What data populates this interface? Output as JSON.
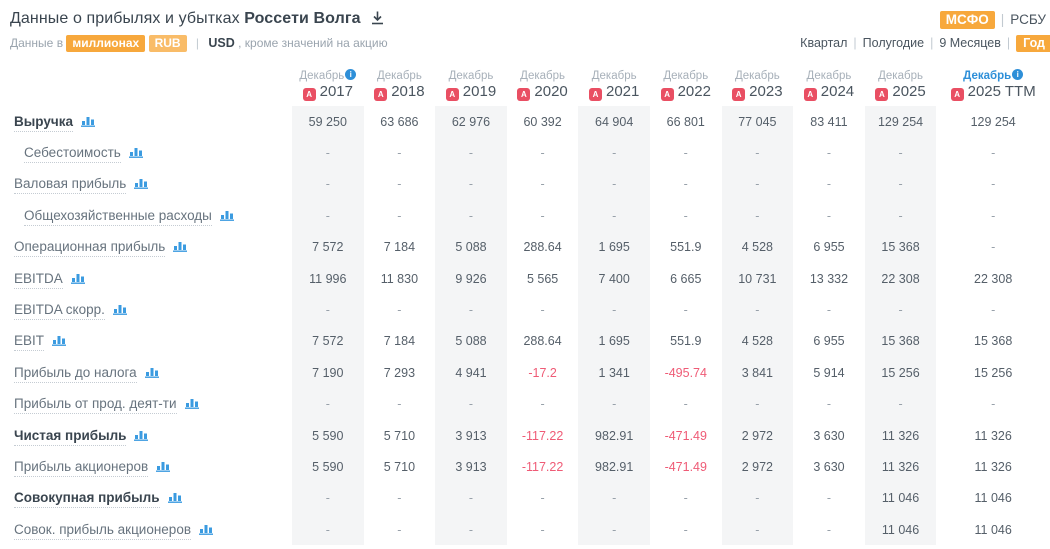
{
  "header": {
    "title_prefix": "Данные о прибылях и убытках",
    "company": "Россети Волга",
    "standards": [
      "МСФО",
      "РСБУ"
    ],
    "active_standard": "МСФО",
    "units_prefix": "Данные в",
    "unit_scale": "миллионах",
    "currency_rub": "RUB",
    "currency_usd": "USD",
    "units_suffix": ", кроме значений на акцию",
    "periods": [
      "Квартал",
      "Полугодие",
      "9 Месяцев",
      "Год"
    ],
    "active_period": "Год"
  },
  "colors": {
    "accent_orange": "#F7A83C",
    "accent_orange_light": "#F9BC68",
    "link_blue": "#2E8FD8",
    "negative_red": "#EF5B76",
    "pdf_red": "#E94F63",
    "column_stripe": "#F4F5F6"
  },
  "table": {
    "columns": [
      {
        "month": "Декабрь",
        "year": "2017",
        "info": true,
        "blue": false,
        "stripe": true
      },
      {
        "month": "Декабрь",
        "year": "2018",
        "info": false,
        "blue": false,
        "stripe": false
      },
      {
        "month": "Декабрь",
        "year": "2019",
        "info": false,
        "blue": false,
        "stripe": true
      },
      {
        "month": "Декабрь",
        "year": "2020",
        "info": false,
        "blue": false,
        "stripe": false
      },
      {
        "month": "Декабрь",
        "year": "2021",
        "info": false,
        "blue": false,
        "stripe": true
      },
      {
        "month": "Декабрь",
        "year": "2022",
        "info": false,
        "blue": false,
        "stripe": false
      },
      {
        "month": "Декабрь",
        "year": "2023",
        "info": false,
        "blue": false,
        "stripe": true
      },
      {
        "month": "Декабрь",
        "year": "2024",
        "info": false,
        "blue": false,
        "stripe": false
      },
      {
        "month": "Декабрь",
        "year": "2025",
        "info": false,
        "blue": false,
        "stripe": true
      },
      {
        "month": "Декабрь",
        "year": "2025 TTM",
        "info": true,
        "blue": true,
        "stripe": false
      }
    ],
    "rows": [
      {
        "label": "Выручка",
        "bold": true,
        "indent": false,
        "values": [
          "59 250",
          "63 686",
          "62 976",
          "60 392",
          "64 904",
          "66 801",
          "77 045",
          "83 411",
          "129 254",
          "129 254"
        ]
      },
      {
        "label": "Себестоимость",
        "bold": false,
        "indent": true,
        "values": [
          "-",
          "-",
          "-",
          "-",
          "-",
          "-",
          "-",
          "-",
          "-",
          "-"
        ]
      },
      {
        "label": "Валовая прибыль",
        "bold": false,
        "indent": false,
        "values": [
          "-",
          "-",
          "-",
          "-",
          "-",
          "-",
          "-",
          "-",
          "-",
          "-"
        ]
      },
      {
        "label": "Общехозяйственные расходы",
        "bold": false,
        "indent": true,
        "values": [
          "-",
          "-",
          "-",
          "-",
          "-",
          "-",
          "-",
          "-",
          "-",
          "-"
        ]
      },
      {
        "label": "Операционная прибыль",
        "bold": false,
        "indent": false,
        "values": [
          "7 572",
          "7 184",
          "5 088",
          "288.64",
          "1 695",
          "551.9",
          "4 528",
          "6 955",
          "15 368",
          "-"
        ]
      },
      {
        "label": "EBITDA",
        "bold": false,
        "indent": false,
        "values": [
          "11 996",
          "11 830",
          "9 926",
          "5 565",
          "7 400",
          "6 665",
          "10 731",
          "13 332",
          "22 308",
          "22 308"
        ]
      },
      {
        "label": "EBITDA скорр.",
        "bold": false,
        "indent": false,
        "values": [
          "-",
          "-",
          "-",
          "-",
          "-",
          "-",
          "-",
          "-",
          "-",
          "-"
        ]
      },
      {
        "label": "EBIT",
        "bold": false,
        "indent": false,
        "values": [
          "7 572",
          "7 184",
          "5 088",
          "288.64",
          "1 695",
          "551.9",
          "4 528",
          "6 955",
          "15 368",
          "15 368"
        ]
      },
      {
        "label": "Прибыль до налога",
        "bold": false,
        "indent": false,
        "values": [
          "7 190",
          "7 293",
          "4 941",
          "-17.2",
          "1 341",
          "-495.74",
          "3 841",
          "5 914",
          "15 256",
          "15 256"
        ]
      },
      {
        "label": "Прибыль от прод. деят-ти",
        "bold": false,
        "indent": false,
        "values": [
          "-",
          "-",
          "-",
          "-",
          "-",
          "-",
          "-",
          "-",
          "-",
          "-"
        ]
      },
      {
        "label": "Чистая прибыль",
        "bold": true,
        "indent": false,
        "values": [
          "5 590",
          "5 710",
          "3 913",
          "-117.22",
          "982.91",
          "-471.49",
          "2 972",
          "3 630",
          "11 326",
          "11 326"
        ]
      },
      {
        "label": "Прибыль акционеров",
        "bold": false,
        "indent": false,
        "values": [
          "5 590",
          "5 710",
          "3 913",
          "-117.22",
          "982.91",
          "-471.49",
          "2 972",
          "3 630",
          "11 326",
          "11 326"
        ]
      },
      {
        "label": "Совокупная прибыль",
        "bold": true,
        "indent": false,
        "values": [
          "-",
          "-",
          "-",
          "-",
          "-",
          "-",
          "-",
          "-",
          "11 046",
          "11 046"
        ]
      },
      {
        "label": "Совок. прибыль акционеров",
        "bold": false,
        "indent": false,
        "values": [
          "-",
          "-",
          "-",
          "-",
          "-",
          "-",
          "-",
          "-",
          "11 046",
          "11 046"
        ]
      }
    ]
  }
}
